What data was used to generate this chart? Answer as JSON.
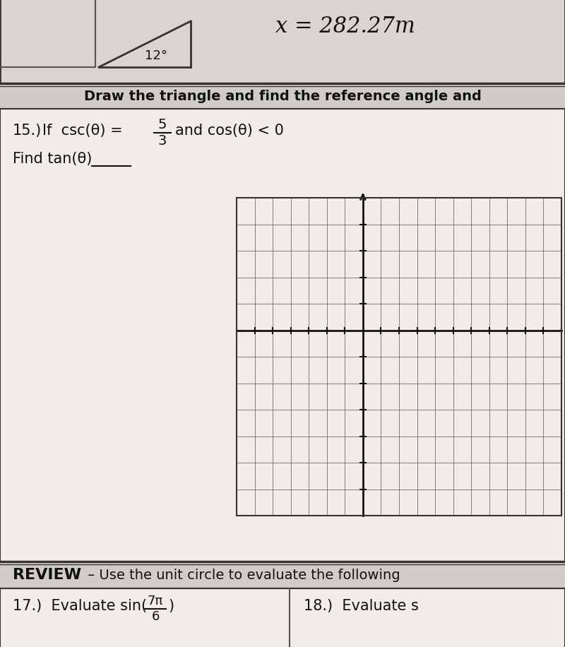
{
  "page_bg": "#e0dcd8",
  "top_bg": "#d8d4d0",
  "header_bg": "#d0ccc8",
  "white_bg": "#f0ede8",
  "font_color": "#111111",
  "header_text": "Draw the triangle and find the reference angle and",
  "problem_15_label": "15.)",
  "problem_15_if": "If  csc(θ) =",
  "fraction_num": "5",
  "fraction_den": "3",
  "problem_15_and": "and cos(θ) < 0",
  "find_text": "Find tan(θ)",
  "grid": {
    "num_cols": 18,
    "num_rows": 12,
    "axis_col": 7,
    "axis_row": 5,
    "line_color": "#555555",
    "major_color": "#111111",
    "bg_color": "#f0ede8"
  },
  "review_label": "REVIEW",
  "review_text": " – Use the unit circle to evaluate the following",
  "p17_text": "17.)  Evaluate sin(",
  "frac17_num": "7π",
  "frac17_den": "6",
  "p18_text": "18.)  Evaluate s",
  "top_right_text": "x = 282.27m",
  "angle_text": "12°"
}
